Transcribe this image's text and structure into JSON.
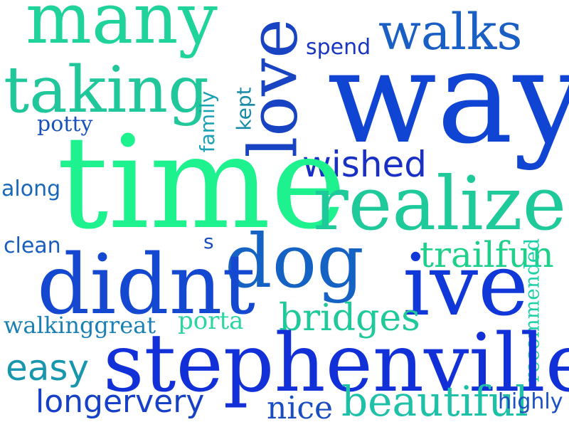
{
  "words": [
    {
      "text": "many",
      "color": "#20d39a"
    },
    {
      "text": "walks",
      "color": "#1a5fc4"
    },
    {
      "text": "spend",
      "color": "#1836c0"
    },
    {
      "text": "love",
      "color": "#1844c4"
    },
    {
      "text": "taking",
      "color": "#1fc79a"
    },
    {
      "text": "way",
      "color": "#1045d3"
    },
    {
      "text": "potty",
      "color": "#1a52bb"
    },
    {
      "text": "family",
      "color": "#1aa1b4"
    },
    {
      "text": "kept",
      "color": "#178aa8"
    },
    {
      "text": "wished",
      "color": "#1830c5"
    },
    {
      "text": "time",
      "color": "#1ef28e"
    },
    {
      "text": "along",
      "color": "#1a66b8"
    },
    {
      "text": "realize",
      "color": "#1ec99a"
    },
    {
      "text": "clean",
      "color": "#1a5ebd"
    },
    {
      "text": "s",
      "color": "#1a4fbb"
    },
    {
      "text": "dog",
      "color": "#1462c4"
    },
    {
      "text": "trailfun",
      "color": "#20d08a"
    },
    {
      "text": "recommended",
      "color": "#1ed0a6"
    },
    {
      "text": "didnt",
      "color": "#1448d0"
    },
    {
      "text": "ive",
      "color": "#1038d8"
    },
    {
      "text": "walkinggreat",
      "color": "#1a80b4"
    },
    {
      "text": "porta",
      "color": "#2bd6a2"
    },
    {
      "text": "bridges",
      "color": "#20c99a"
    },
    {
      "text": "easy",
      "color": "#1796ae"
    },
    {
      "text": "stephenville",
      "color": "#1230d8"
    },
    {
      "text": "longervery",
      "color": "#1640c8"
    },
    {
      "text": "nice",
      "color": "#1a4ec0"
    },
    {
      "text": "beautiful",
      "color": "#1fc0a8"
    },
    {
      "text": "highly",
      "color": "#1a50c4"
    }
  ]
}
